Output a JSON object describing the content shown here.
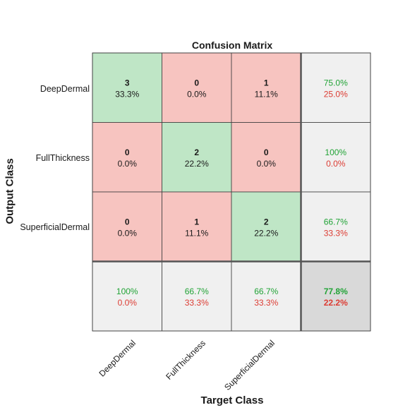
{
  "chart_data": {
    "type": "heatmap",
    "title": "Confusion Matrix",
    "xlabel": "Target Class",
    "ylabel": "Output Class",
    "target_classes": [
      "DeepDermal",
      "FullThickness",
      "SuperficialDermal"
    ],
    "output_classes": [
      "DeepDermal",
      "FullThickness",
      "SuperficialDermal"
    ],
    "matrix": [
      [
        {
          "count": "3",
          "percent": "33.3%"
        },
        {
          "count": "0",
          "percent": "0.0%"
        },
        {
          "count": "1",
          "percent": "11.1%"
        }
      ],
      [
        {
          "count": "0",
          "percent": "0.0%"
        },
        {
          "count": "2",
          "percent": "22.2%"
        },
        {
          "count": "0",
          "percent": "0.0%"
        }
      ],
      [
        {
          "count": "0",
          "percent": "0.0%"
        },
        {
          "count": "1",
          "percent": "11.1%"
        },
        {
          "count": "2",
          "percent": "22.2%"
        }
      ]
    ],
    "row_summary": [
      {
        "correct": "75.0%",
        "incorrect": "25.0%"
      },
      {
        "correct": "100%",
        "incorrect": "0.0%"
      },
      {
        "correct": "66.7%",
        "incorrect": "33.3%"
      }
    ],
    "column_summary": [
      {
        "correct": "100%",
        "incorrect": "0.0%"
      },
      {
        "correct": "66.7%",
        "incorrect": "33.3%"
      },
      {
        "correct": "66.7%",
        "incorrect": "33.3%"
      }
    ],
    "overall": {
      "correct": "77.8%",
      "incorrect": "22.2%"
    },
    "colors": {
      "correct_cell": "#bfe6c6",
      "incorrect_cell": "#f7c4c0",
      "summary_cell": "#f0f0f0",
      "overall_cell": "#d9d9d9",
      "correct_text": "#21a336",
      "incorrect_text": "#dc3c33",
      "grid_line": "#555555"
    }
  }
}
